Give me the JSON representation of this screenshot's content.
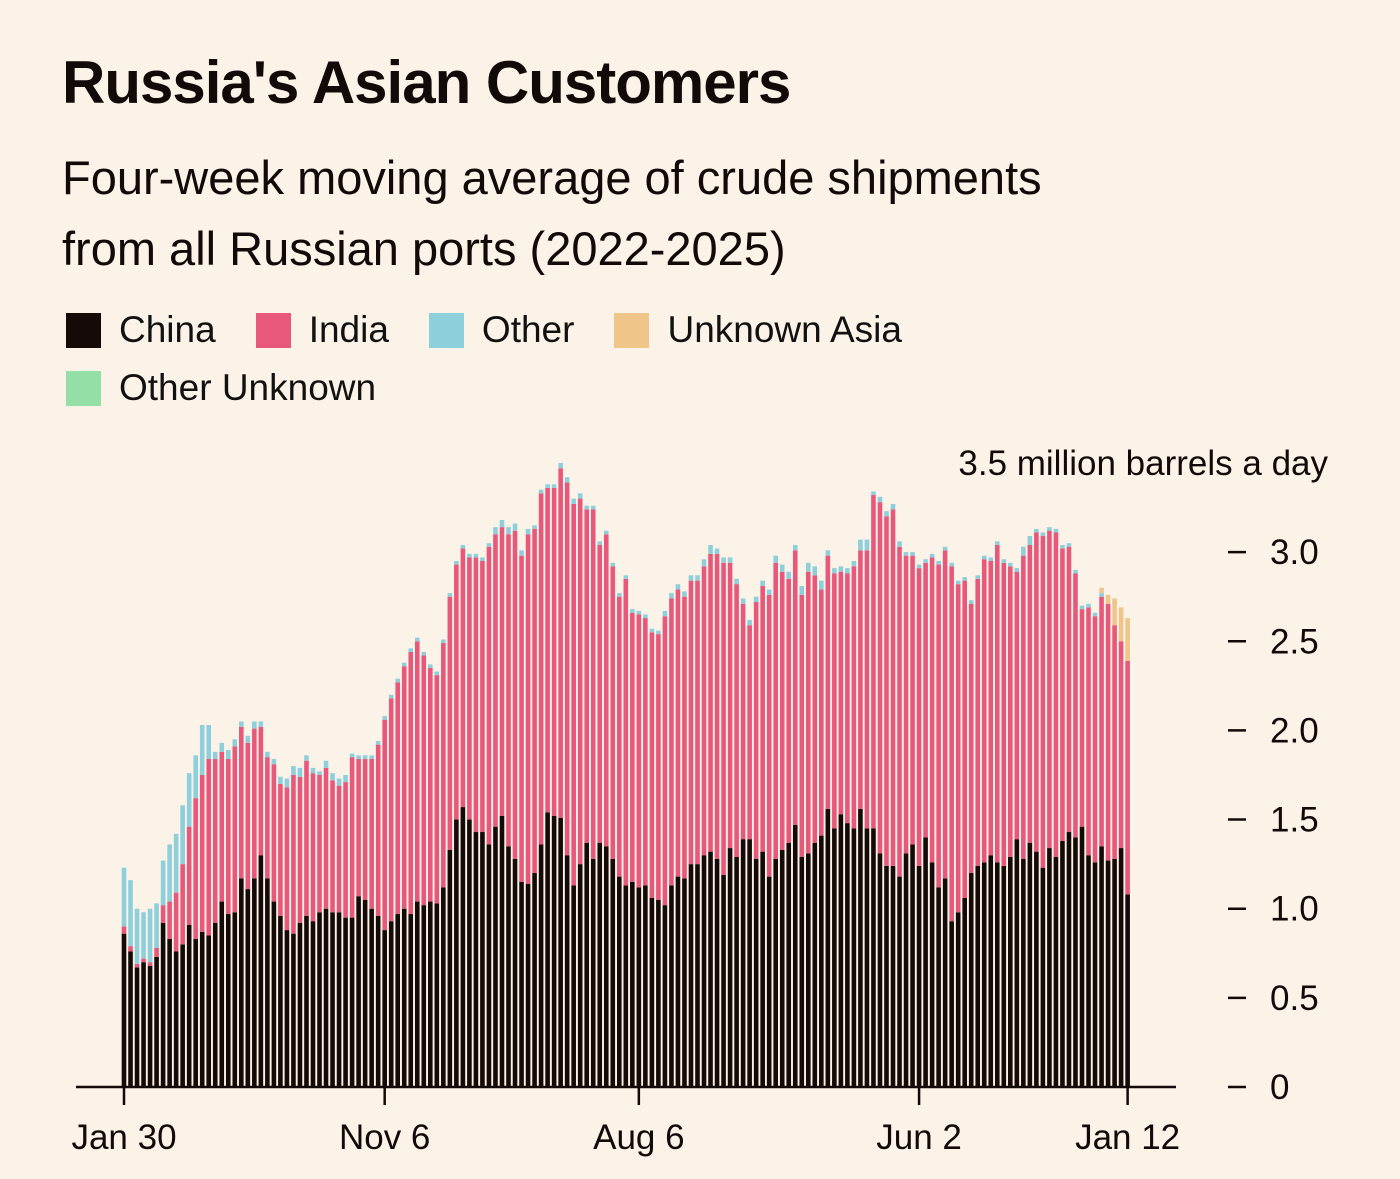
{
  "chart_data": {
    "type": "bar",
    "stacked": true,
    "title": "Russia's Asian Customers",
    "subtitle": "Four-week moving average of crude shipments from all Russian ports (2022-2025)",
    "subtitle_lines": [
      "Four-week moving average of crude shipments",
      "from all Russian ports (2022-2025)"
    ],
    "ylabel": "3.5 million barrels a day",
    "ylim": [
      0,
      3.5
    ],
    "yticks": [
      {
        "value": 3.0,
        "label": "3.0"
      },
      {
        "value": 2.5,
        "label": "2.5"
      },
      {
        "value": 2.0,
        "label": "2.0"
      },
      {
        "value": 1.5,
        "label": "1.5"
      },
      {
        "value": 1.0,
        "label": "1.0"
      },
      {
        "value": 0.5,
        "label": "0.5"
      },
      {
        "value": 0,
        "label": "0"
      }
    ],
    "x_start": "2022-01-30",
    "x_interval": "weekly",
    "xticks": [
      {
        "index": 0,
        "label": "Jan 30"
      },
      {
        "index": 40,
        "label": "Nov 6"
      },
      {
        "index": 79,
        "label": "Aug 6"
      },
      {
        "index": 122,
        "label": "Jun 2"
      },
      {
        "index": 154,
        "label": "Jan 12"
      }
    ],
    "legend_position": "top-left",
    "series": [
      {
        "name": "China",
        "color": "#140a08",
        "values": [
          0.86,
          0.76,
          0.67,
          0.7,
          0.68,
          0.73,
          0.92,
          0.83,
          0.76,
          0.8,
          0.91,
          0.83,
          0.87,
          0.85,
          0.92,
          1.04,
          0.97,
          0.98,
          1.17,
          1.11,
          1.17,
          1.3,
          1.17,
          1.04,
          0.96,
          0.88,
          0.86,
          0.92,
          0.96,
          0.93,
          0.98,
          1.0,
          0.98,
          0.98,
          0.95,
          0.95,
          1.07,
          1.05,
          1.0,
          0.96,
          0.88,
          0.93,
          0.97,
          1.0,
          0.97,
          1.04,
          1.02,
          1.04,
          1.03,
          1.12,
          1.33,
          1.5,
          1.57,
          1.5,
          1.43,
          1.43,
          1.36,
          1.46,
          1.52,
          1.35,
          1.28,
          1.15,
          1.14,
          1.2,
          1.36,
          1.54,
          1.52,
          1.51,
          1.3,
          1.13,
          1.25,
          1.37,
          1.28,
          1.37,
          1.35,
          1.28,
          1.18,
          1.13,
          1.15,
          1.12,
          1.13,
          1.06,
          1.05,
          1.02,
          1.13,
          1.18,
          1.17,
          1.25,
          1.25,
          1.3,
          1.32,
          1.28,
          1.19,
          1.34,
          1.29,
          1.39,
          1.39,
          1.28,
          1.32,
          1.18,
          1.28,
          1.33,
          1.37,
          1.47,
          1.29,
          1.31,
          1.37,
          1.41,
          1.56,
          1.45,
          1.53,
          1.48,
          1.45,
          1.56,
          1.45,
          1.45,
          1.31,
          1.24,
          1.24,
          1.18,
          1.31,
          1.36,
          1.24,
          1.4,
          1.26,
          1.12,
          1.17,
          0.93,
          0.98,
          1.06,
          1.2,
          1.24,
          1.26,
          1.3,
          1.26,
          1.24,
          1.29,
          1.39,
          1.28,
          1.37,
          1.32,
          1.23,
          1.34,
          1.29,
          1.38,
          1.43,
          1.4,
          1.46,
          1.3,
          1.26,
          1.35,
          1.27,
          1.28,
          1.34,
          1.08
        ]
      },
      {
        "name": "India",
        "color": "#e8587a",
        "values": [
          0.04,
          0.03,
          0.02,
          0.02,
          0.02,
          0.05,
          0.1,
          0.21,
          0.33,
          0.45,
          0.55,
          0.79,
          0.88,
          0.99,
          0.92,
          0.84,
          0.87,
          0.93,
          0.85,
          0.82,
          0.84,
          0.72,
          0.68,
          0.77,
          0.74,
          0.8,
          0.89,
          0.82,
          0.87,
          0.83,
          0.77,
          0.79,
          0.74,
          0.71,
          0.76,
          0.9,
          0.77,
          0.79,
          0.84,
          0.96,
          1.18,
          1.25,
          1.3,
          1.36,
          1.47,
          1.46,
          1.4,
          1.31,
          1.28,
          1.37,
          1.42,
          1.43,
          1.45,
          1.47,
          1.54,
          1.52,
          1.67,
          1.64,
          1.62,
          1.75,
          1.84,
          1.83,
          1.96,
          1.93,
          1.97,
          1.82,
          1.84,
          1.96,
          2.09,
          2.14,
          2.05,
          1.87,
          1.96,
          1.67,
          1.75,
          1.64,
          1.57,
          1.72,
          1.51,
          1.53,
          1.5,
          1.49,
          1.49,
          1.62,
          1.61,
          1.61,
          1.58,
          1.59,
          1.59,
          1.62,
          1.67,
          1.71,
          1.75,
          1.6,
          1.53,
          1.32,
          1.2,
          1.44,
          1.49,
          1.58,
          1.66,
          1.56,
          1.48,
          1.54,
          1.47,
          1.58,
          1.5,
          1.38,
          1.42,
          1.43,
          1.36,
          1.4,
          1.47,
          1.45,
          1.56,
          1.87,
          1.97,
          1.96,
          2.0,
          1.85,
          1.67,
          1.62,
          1.67,
          1.54,
          1.71,
          1.81,
          1.84,
          1.99,
          1.84,
          1.78,
          1.51,
          1.61,
          1.7,
          1.65,
          1.78,
          1.7,
          1.63,
          1.5,
          1.7,
          1.67,
          1.79,
          1.86,
          1.78,
          1.82,
          1.64,
          1.6,
          1.48,
          1.22,
          1.39,
          1.38,
          1.4,
          1.44,
          1.31,
          1.16,
          1.31
        ]
      },
      {
        "name": "Other",
        "color": "#8ecfdc",
        "values": [
          0.33,
          0.37,
          0.31,
          0.26,
          0.3,
          0.25,
          0.25,
          0.32,
          0.33,
          0.33,
          0.3,
          0.24,
          0.28,
          0.19,
          0.04,
          0.05,
          0.05,
          0.04,
          0.03,
          0.04,
          0.04,
          0.03,
          0.03,
          0.03,
          0.04,
          0.05,
          0.05,
          0.05,
          0.03,
          0.03,
          0.02,
          0.04,
          0.04,
          0.04,
          0.04,
          0.02,
          0.02,
          0.02,
          0.02,
          0.02,
          0.02,
          0.02,
          0.02,
          0.02,
          0.02,
          0.02,
          0.02,
          0.02,
          0.02,
          0.02,
          0.02,
          0.02,
          0.02,
          0.02,
          0.02,
          0.02,
          0.02,
          0.04,
          0.04,
          0.04,
          0.04,
          0.03,
          0.03,
          0.02,
          0.02,
          0.02,
          0.02,
          0.03,
          0.03,
          0.03,
          0.03,
          0.02,
          0.02,
          0.02,
          0.02,
          0.02,
          0.02,
          0.02,
          0.02,
          0.02,
          0.02,
          0.02,
          0.02,
          0.03,
          0.03,
          0.03,
          0.03,
          0.03,
          0.03,
          0.04,
          0.05,
          0.03,
          0.03,
          0.03,
          0.03,
          0.03,
          0.03,
          0.03,
          0.03,
          0.03,
          0.04,
          0.04,
          0.04,
          0.03,
          0.05,
          0.05,
          0.05,
          0.05,
          0.03,
          0.03,
          0.03,
          0.03,
          0.03,
          0.06,
          0.06,
          0.02,
          0.03,
          0.03,
          0.03,
          0.03,
          0.02,
          0.02,
          0.02,
          0.02,
          0.02,
          0.02,
          0.02,
          0.02,
          0.02,
          0.02,
          0.02,
          0.02,
          0.02,
          0.02,
          0.02,
          0.02,
          0.02,
          0.02,
          0.05,
          0.05,
          0.02,
          0.02,
          0.02,
          0.02,
          0.02,
          0.02,
          0.02,
          0.02,
          0.02,
          0.02,
          0.02,
          0.0,
          0.0,
          0.0,
          0.0
        ]
      },
      {
        "name": "Unknown Asia",
        "color": "#efc58a",
        "values": [
          0,
          0,
          0,
          0,
          0,
          0,
          0,
          0,
          0,
          0,
          0,
          0,
          0,
          0,
          0,
          0,
          0,
          0,
          0,
          0,
          0,
          0,
          0,
          0,
          0,
          0,
          0,
          0,
          0,
          0,
          0,
          0,
          0,
          0,
          0,
          0,
          0,
          0,
          0,
          0,
          0,
          0,
          0,
          0,
          0,
          0,
          0,
          0,
          0,
          0,
          0,
          0,
          0,
          0,
          0,
          0,
          0,
          0,
          0,
          0,
          0,
          0,
          0,
          0,
          0,
          0,
          0,
          0,
          0,
          0,
          0,
          0,
          0,
          0,
          0,
          0,
          0,
          0,
          0,
          0,
          0,
          0,
          0,
          0,
          0,
          0,
          0,
          0,
          0,
          0,
          0,
          0,
          0,
          0,
          0,
          0,
          0,
          0,
          0,
          0,
          0,
          0,
          0,
          0,
          0,
          0,
          0,
          0,
          0,
          0,
          0,
          0,
          0,
          0,
          0,
          0,
          0,
          0,
          0,
          0,
          0,
          0,
          0,
          0,
          0,
          0,
          0,
          0,
          0,
          0,
          0,
          0,
          0,
          0,
          0,
          0,
          0,
          0,
          0,
          0,
          0,
          0,
          0,
          0,
          0,
          0,
          0,
          0,
          0,
          0,
          0.03,
          0.05,
          0.15,
          0.19,
          0.24
        ]
      },
      {
        "name": "Other Unknown",
        "color": "#94dfa6",
        "values": [
          0,
          0,
          0,
          0,
          0,
          0,
          0,
          0,
          0,
          0,
          0,
          0,
          0,
          0,
          0,
          0,
          0,
          0,
          0,
          0,
          0,
          0,
          0,
          0,
          0,
          0,
          0,
          0,
          0,
          0,
          0,
          0,
          0,
          0,
          0,
          0,
          0,
          0,
          0,
          0,
          0,
          0,
          0,
          0,
          0,
          0,
          0,
          0,
          0,
          0,
          0,
          0,
          0,
          0,
          0,
          0,
          0,
          0,
          0,
          0,
          0,
          0,
          0,
          0,
          0,
          0,
          0,
          0,
          0,
          0,
          0,
          0,
          0,
          0,
          0,
          0,
          0,
          0,
          0,
          0,
          0,
          0,
          0,
          0,
          0,
          0,
          0,
          0,
          0,
          0,
          0,
          0,
          0,
          0,
          0,
          0,
          0,
          0,
          0,
          0,
          0,
          0,
          0,
          0,
          0,
          0,
          0,
          0,
          0,
          0,
          0,
          0,
          0,
          0,
          0,
          0,
          0,
          0,
          0,
          0,
          0,
          0,
          0,
          0,
          0,
          0,
          0,
          0,
          0,
          0,
          0,
          0,
          0,
          0,
          0,
          0,
          0,
          0,
          0,
          0,
          0,
          0,
          0,
          0,
          0,
          0,
          0,
          0,
          0,
          0,
          0,
          0,
          0,
          0,
          0
        ]
      }
    ]
  }
}
